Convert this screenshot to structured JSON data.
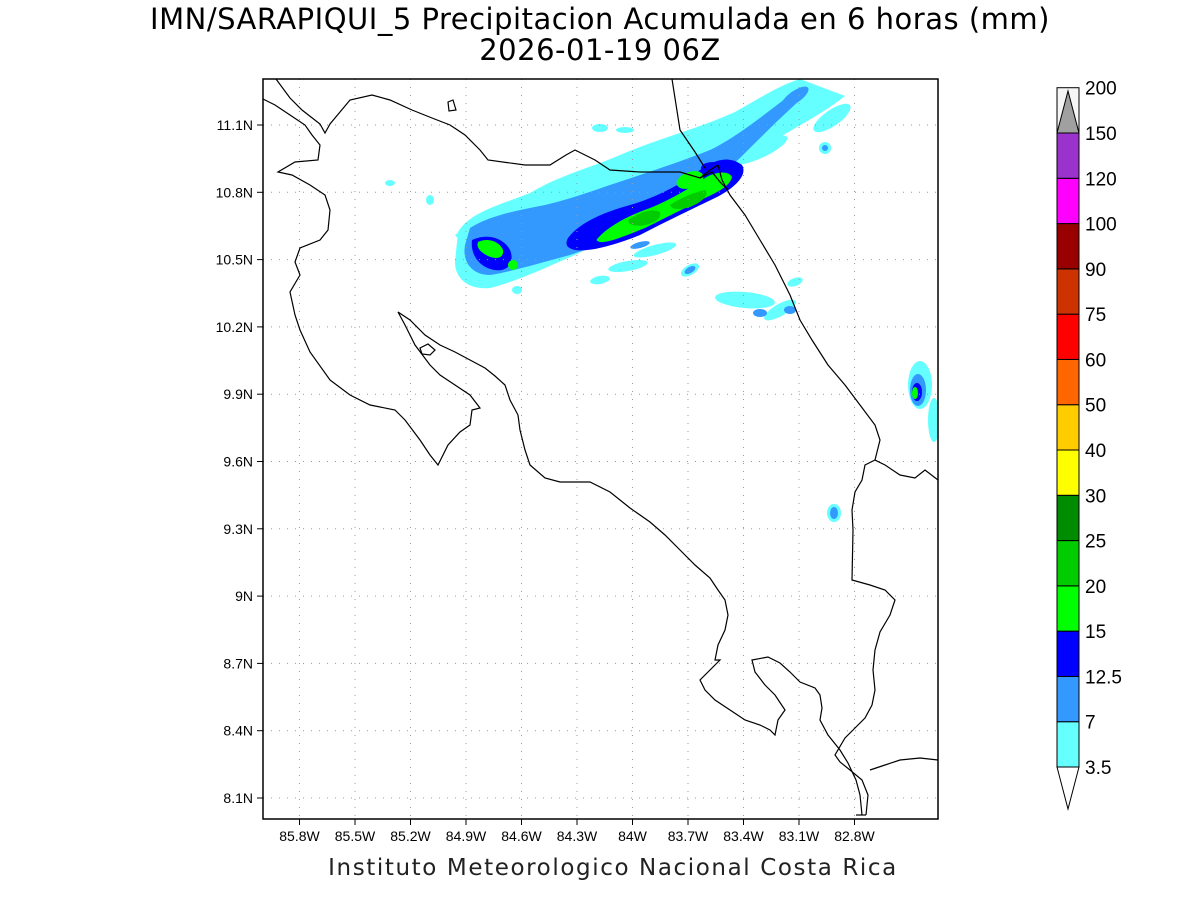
{
  "title": {
    "line1": "IMN/SARAPIQUI_5 Precipitacion Acumulada en 6 horas (mm)",
    "line2": "2026-01-19 06Z"
  },
  "credit": "Instituto Meteorologico Nacional Costa Rica",
  "map": {
    "lon_range": [
      -86.0,
      -82.5
    ],
    "lat_range": [
      8.0,
      11.2
    ],
    "lon_ticks": [
      {
        "value": -85.8,
        "label": "85.8W"
      },
      {
        "value": -85.5,
        "label": "85.5W"
      },
      {
        "value": -85.2,
        "label": "85.2W"
      },
      {
        "value": -84.9,
        "label": "84.9W"
      },
      {
        "value": -84.6,
        "label": "84.6W"
      },
      {
        "value": -84.3,
        "label": "84.3W"
      },
      {
        "value": -84.0,
        "label": "84W"
      },
      {
        "value": -83.7,
        "label": "83.7W"
      },
      {
        "value": -83.4,
        "label": "83.4W"
      },
      {
        "value": -83.1,
        "label": "83.1W"
      },
      {
        "value": -82.8,
        "label": "82.8W"
      }
    ],
    "lat_ticks": [
      {
        "value": 8.1,
        "label": "8.1N"
      },
      {
        "value": 8.4,
        "label": "8.4N"
      },
      {
        "value": 8.7,
        "label": "8.7N"
      },
      {
        "value": 9.0,
        "label": "9N"
      },
      {
        "value": 9.3,
        "label": "9.3N"
      },
      {
        "value": 9.6,
        "label": "9.6N"
      },
      {
        "value": 9.9,
        "label": "9.9N"
      },
      {
        "value": 10.2,
        "label": "10.2N"
      },
      {
        "value": 10.5,
        "label": "10.5N"
      },
      {
        "value": 10.8,
        "label": "10.8N"
      },
      {
        "value": 11.1,
        "label": "11.1N"
      }
    ],
    "grid": true
  },
  "colorbar": {
    "levels": [
      {
        "label": "3.5",
        "color": "#66ffff"
      },
      {
        "label": "7",
        "color": "#3399ff"
      },
      {
        "label": "12.5",
        "color": "#0000ff"
      },
      {
        "label": "15",
        "color": "#00ff00"
      },
      {
        "label": "20",
        "color": "#00cc00"
      },
      {
        "label": "25",
        "color": "#008c00"
      },
      {
        "label": "30",
        "color": "#ffff00"
      },
      {
        "label": "40",
        "color": "#ffcc00"
      },
      {
        "label": "50",
        "color": "#ff6600"
      },
      {
        "label": "60",
        "color": "#ff0000"
      },
      {
        "label": "75",
        "color": "#cc3300"
      },
      {
        "label": "90",
        "color": "#990000"
      },
      {
        "label": "100",
        "color": "#ff00ff"
      },
      {
        "label": "120",
        "color": "#9933cc"
      },
      {
        "label": "150",
        "color": "#f5f5f5"
      },
      {
        "label": "200",
        "color": "#a0a0a0"
      }
    ]
  }
}
